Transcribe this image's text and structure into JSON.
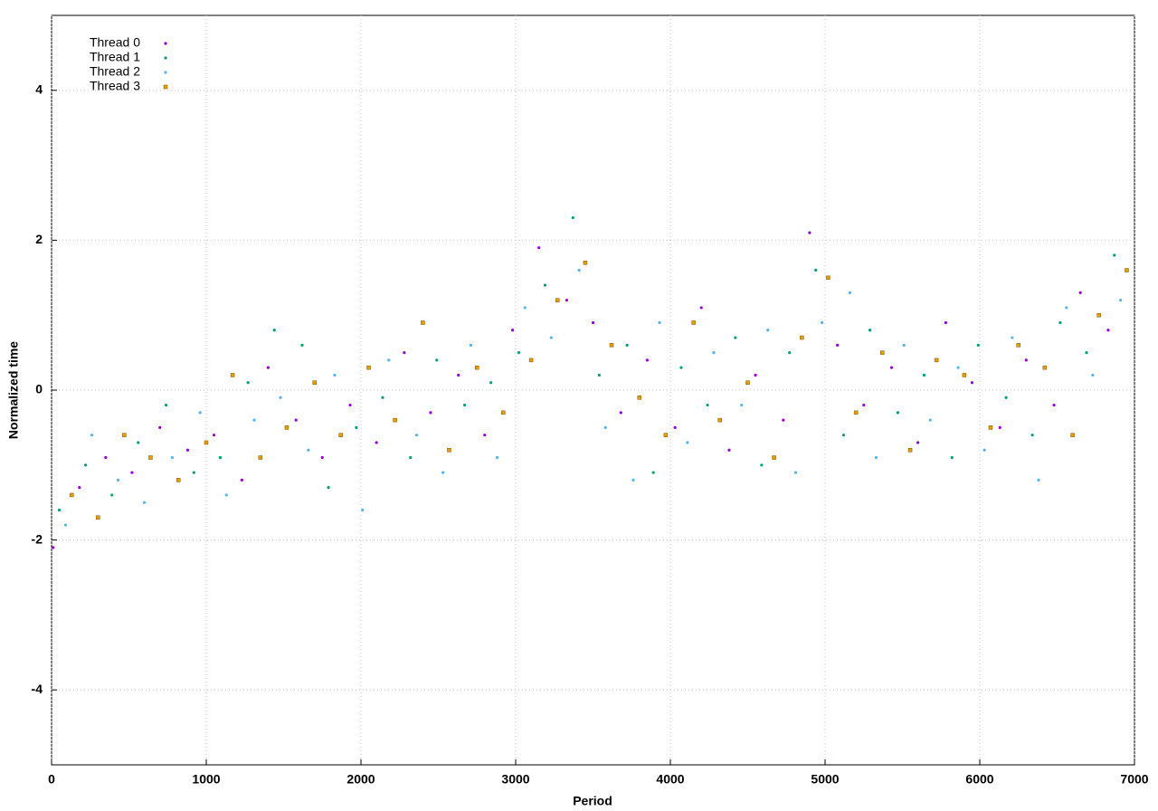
{
  "chart_data": {
    "type": "scatter",
    "x_label": "Period",
    "y_label": "Normalized time",
    "xlim": [
      0,
      7000
    ],
    "ylim": [
      -5,
      5
    ],
    "xticks": [
      0,
      1000,
      2000,
      3000,
      4000,
      5000,
      6000,
      7000
    ],
    "yticks": [
      -4,
      -2,
      0,
      2,
      4
    ],
    "grid": true,
    "legend": "top-left",
    "series": [
      {
        "name": "Thread 0",
        "color": "#9400d3",
        "marker": "dot",
        "x": [
          10,
          180,
          350,
          520,
          700,
          880,
          1050,
          1230,
          1400,
          1580,
          1750,
          1930,
          2100,
          2280,
          2450,
          2630,
          2800,
          2980,
          3150,
          3330,
          3500,
          3680,
          3850,
          4030,
          4200,
          4380,
          4550,
          4730,
          4900,
          5080,
          5250,
          5430,
          5600,
          5780,
          5950,
          6130,
          6300,
          6480,
          6650,
          6830
        ],
        "values": [
          -2.1,
          -1.3,
          -0.9,
          -1.1,
          -0.5,
          -0.8,
          -0.6,
          -1.2,
          0.3,
          -0.4,
          -0.9,
          -0.2,
          -0.7,
          0.5,
          -0.3,
          0.2,
          -0.6,
          0.8,
          1.9,
          1.2,
          0.9,
          -0.3,
          0.4,
          -0.5,
          1.1,
          -0.8,
          0.2,
          -0.4,
          2.1,
          0.6,
          -0.2,
          0.3,
          -0.7,
          0.9,
          0.1,
          -0.5,
          0.4,
          -0.2,
          1.3,
          0.8
        ]
      },
      {
        "name": "Thread 1",
        "color": "#009e73",
        "marker": "dot",
        "x": [
          50,
          220,
          390,
          560,
          740,
          920,
          1090,
          1270,
          1440,
          1620,
          1790,
          1970,
          2140,
          2320,
          2490,
          2670,
          2840,
          3020,
          3190,
          3370,
          3540,
          3720,
          3890,
          4070,
          4240,
          4420,
          4590,
          4770,
          4940,
          5120,
          5290,
          5470,
          5640,
          5820,
          5990,
          6170,
          6340,
          6520,
          6690,
          6870
        ],
        "values": [
          -1.6,
          -1.0,
          -1.4,
          -0.7,
          -0.2,
          -1.1,
          -0.9,
          0.1,
          0.8,
          0.6,
          -1.3,
          -0.5,
          -0.1,
          -0.9,
          0.4,
          -0.2,
          0.1,
          0.5,
          1.4,
          2.3,
          0.2,
          0.6,
          -1.1,
          0.3,
          -0.2,
          0.7,
          -1.0,
          0.5,
          1.6,
          -0.6,
          0.8,
          -0.3,
          0.2,
          -0.9,
          0.6,
          -0.1,
          -0.6,
          0.9,
          0.5,
          1.8
        ]
      },
      {
        "name": "Thread 2",
        "color": "#56b4e9",
        "marker": "dot",
        "x": [
          90,
          260,
          430,
          600,
          780,
          960,
          1130,
          1310,
          1480,
          1660,
          1830,
          2010,
          2180,
          2360,
          2530,
          2710,
          2880,
          3060,
          3230,
          3410,
          3580,
          3760,
          3930,
          4110,
          4280,
          4460,
          4630,
          4810,
          4980,
          5160,
          5330,
          5510,
          5680,
          5860,
          6030,
          6210,
          6380,
          6560,
          6730,
          6910
        ],
        "values": [
          -1.8,
          -0.6,
          -1.2,
          -1.5,
          -0.9,
          -0.3,
          -1.4,
          -0.4,
          -0.1,
          -0.8,
          0.2,
          -1.6,
          0.4,
          -0.6,
          -1.1,
          0.6,
          -0.9,
          1.1,
          0.7,
          1.6,
          -0.5,
          -1.2,
          0.9,
          -0.7,
          0.5,
          -0.2,
          0.8,
          -1.1,
          0.9,
          1.3,
          -0.9,
          0.6,
          -0.4,
          0.3,
          -0.8,
          0.7,
          -1.2,
          1.1,
          0.2,
          1.2
        ]
      },
      {
        "name": "Thread 3",
        "color": "#e69f00",
        "marker": "square",
        "x": [
          130,
          300,
          470,
          640,
          820,
          1000,
          1170,
          1350,
          1520,
          1700,
          1870,
          2050,
          2220,
          2400,
          2570,
          2750,
          2920,
          3100,
          3270,
          3450,
          3620,
          3800,
          3970,
          4150,
          4320,
          4500,
          4670,
          4850,
          5020,
          5200,
          5370,
          5550,
          5720,
          5900,
          6070,
          6250,
          6420,
          6600,
          6770,
          6950
        ],
        "values": [
          -1.4,
          -1.7,
          -0.6,
          -0.9,
          -1.2,
          -0.7,
          0.2,
          -0.9,
          -0.5,
          0.1,
          -0.6,
          0.3,
          -0.4,
          0.9,
          -0.8,
          0.3,
          -0.3,
          0.4,
          1.2,
          1.7,
          0.6,
          -0.1,
          -0.6,
          0.9,
          -0.4,
          0.1,
          -0.9,
          0.7,
          1.5,
          -0.3,
          0.5,
          -0.8,
          0.4,
          0.2,
          -0.5,
          0.6,
          0.3,
          -0.6,
          1.0,
          1.6
        ]
      }
    ]
  }
}
